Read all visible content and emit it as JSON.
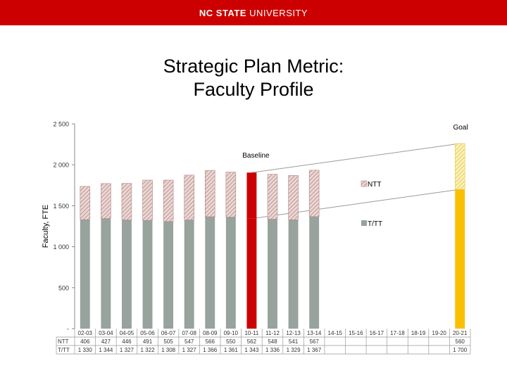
{
  "header": {
    "brand_bold": "NC STATE",
    "brand_rest": " UNIVERSITY",
    "brand_color": "#cc0000"
  },
  "slide": {
    "title_line1": "Strategic Plan Metric:",
    "title_line2": "Faculty Profile"
  },
  "chart_data": {
    "type": "bar",
    "stacked": true,
    "ylabel": "Faculty, FTE",
    "ylim": [
      0,
      2500
    ],
    "yticks": [
      "-",
      "500",
      "1 000",
      "1 500",
      "2 000",
      "2 500"
    ],
    "ytick_values": [
      0,
      500,
      1000,
      1500,
      2000,
      2500
    ],
    "categories": [
      "02-03",
      "03-04",
      "04-05",
      "05-06",
      "06-07",
      "07-08",
      "08-09",
      "09-10",
      "10-11",
      "11-12",
      "12-13",
      "13-14",
      "14-15",
      "15-16",
      "16-17",
      "17-18",
      "18-19",
      "19-20",
      "20-21"
    ],
    "series": [
      {
        "name": "T/TT",
        "row_label": "T/TT",
        "color": "#97a39c",
        "values": [
          1330,
          1344,
          1327,
          1322,
          1308,
          1327,
          1366,
          1361,
          1343,
          1336,
          1329,
          1367,
          null,
          null,
          null,
          null,
          null,
          null,
          1700
        ],
        "labels": [
          "1 330",
          "1 344",
          "1 327",
          "1 322",
          "1 308",
          "1 327",
          "1 366",
          "1 361",
          "1 343",
          "1 336",
          "1 329",
          "1 367",
          "",
          "",
          "",
          "",
          "",
          "",
          "1 700"
        ]
      },
      {
        "name": "NTT",
        "row_label": "NTT",
        "color": "#d4b0ac",
        "values": [
          406,
          427,
          446,
          491,
          505,
          547,
          566,
          550,
          562,
          548,
          541,
          567,
          null,
          null,
          null,
          null,
          null,
          null,
          560
        ],
        "labels": [
          "406",
          "427",
          "446",
          "491",
          "505",
          "547",
          "566",
          "550",
          "562",
          "548",
          "541",
          "567",
          "",
          "",
          "",
          "",
          "",
          "",
          "560"
        ]
      }
    ],
    "highlight": [
      {
        "category": "10-11",
        "color": "#cc0000"
      },
      {
        "category": "20-21",
        "color": "#fac000"
      }
    ],
    "legend": {
      "placement": "right",
      "items": [
        "NTT",
        "T/TT"
      ]
    },
    "annotations": [
      {
        "text": "Baseline",
        "category": "10-11"
      },
      {
        "text": "Goal",
        "category": "20-21"
      }
    ],
    "trend_lines": [
      {
        "from_category": "10-11",
        "from_value": 1905,
        "to_category": "20-21",
        "to_value": 2260
      },
      {
        "from_category": "10-11",
        "from_value": 1343,
        "to_category": "20-21",
        "to_value": 1700
      }
    ],
    "grid": false,
    "data_table": true
  }
}
